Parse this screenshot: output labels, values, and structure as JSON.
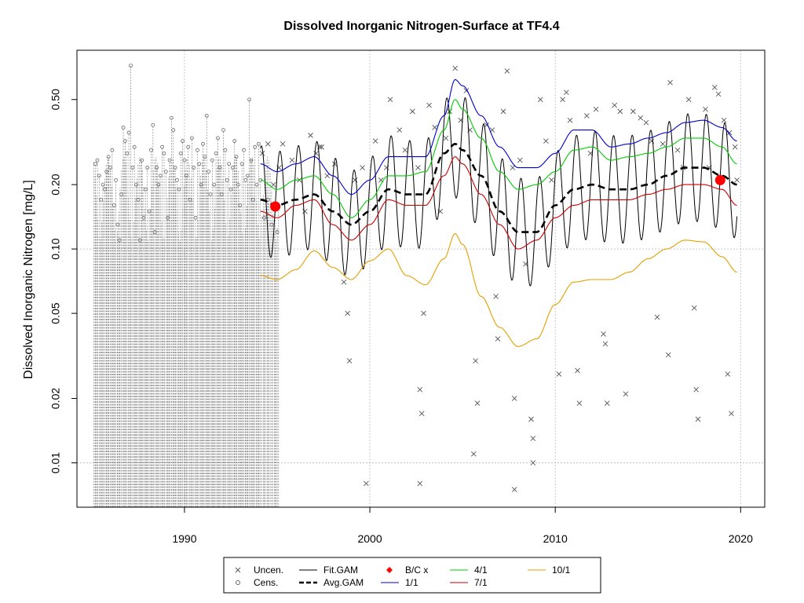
{
  "chart_data": {
    "type": "line",
    "title": "Dissolved Inorganic Nitrogen-Surface at TF4.4",
    "ylabel": "Dissolved Inorganic Nitrogen [mg/L]",
    "xlabel": "",
    "xlim": [
      1984.2,
      2021.3
    ],
    "ylim": [
      0.0062,
      0.85
    ],
    "y_scale": "log",
    "grid": true,
    "x_ticks": [
      1990,
      2000,
      2010,
      2020
    ],
    "y_ticks": [
      0.01,
      0.02,
      0.05,
      0.1,
      0.2,
      0.5
    ],
    "y_tick_labels": [
      "0.01",
      "0.02",
      "0.05",
      "0.10",
      "0.20",
      "0.50"
    ],
    "censored_range": [
      1985.1,
      1995.1
    ],
    "colors": {
      "fit": "#000000",
      "avg": "#000000",
      "p11": "#0000cc",
      "p41": "#00cc00",
      "p71": "#cc0000",
      "p101": "#e69f00",
      "bc": "#ff0000",
      "points": "#555555",
      "grid": "#bbbbbb"
    },
    "series": [
      {
        "name": "1/1",
        "key": "p11",
        "x": [
          1994.1,
          1995,
          1996,
          1997,
          1998,
          1999,
          2000,
          2001,
          2002,
          2003,
          2004,
          2004.6,
          2005,
          2006,
          2007,
          2008,
          2009,
          2010,
          2011,
          2012,
          2013,
          2014,
          2015,
          2016,
          2017,
          2018,
          2019,
          2019.8
        ],
        "values": [
          0.25,
          0.23,
          0.25,
          0.27,
          0.22,
          0.18,
          0.21,
          0.27,
          0.27,
          0.27,
          0.42,
          0.62,
          0.58,
          0.42,
          0.3,
          0.24,
          0.24,
          0.28,
          0.36,
          0.36,
          0.3,
          0.31,
          0.33,
          0.35,
          0.39,
          0.4,
          0.37,
          0.32
        ]
      },
      {
        "name": "4/1",
        "key": "p41",
        "x": [
          1994.1,
          1995,
          1996,
          1997,
          1998,
          1999,
          2000,
          2001,
          2002,
          2003,
          2004,
          2004.6,
          2005,
          2006,
          2007,
          2008,
          2009,
          2010,
          2011,
          2012,
          2013,
          2014,
          2015,
          2016,
          2017,
          2018,
          2019,
          2019.8
        ],
        "values": [
          0.21,
          0.19,
          0.21,
          0.22,
          0.18,
          0.14,
          0.17,
          0.22,
          0.22,
          0.23,
          0.36,
          0.5,
          0.45,
          0.33,
          0.23,
          0.19,
          0.2,
          0.23,
          0.29,
          0.3,
          0.26,
          0.27,
          0.28,
          0.3,
          0.33,
          0.33,
          0.3,
          0.25
        ]
      },
      {
        "name": "7/1",
        "key": "p71",
        "x": [
          1994.1,
          1995,
          1996,
          1997,
          1998,
          1999,
          2000,
          2001,
          2002,
          2003,
          2004,
          2004.6,
          2005,
          2006,
          2007,
          2008,
          2009,
          2010,
          2011,
          2012,
          2013,
          2014,
          2015,
          2016,
          2017,
          2018,
          2019,
          2019.8
        ],
        "values": [
          0.15,
          0.14,
          0.16,
          0.17,
          0.13,
          0.11,
          0.13,
          0.17,
          0.16,
          0.16,
          0.22,
          0.27,
          0.25,
          0.18,
          0.13,
          0.1,
          0.11,
          0.14,
          0.16,
          0.17,
          0.17,
          0.17,
          0.18,
          0.19,
          0.2,
          0.2,
          0.19,
          0.16
        ]
      },
      {
        "name": "10/1",
        "key": "p101",
        "x": [
          1994.1,
          1995,
          1996,
          1997,
          1998,
          1999,
          2000,
          2001,
          2002,
          2003,
          2004,
          2004.6,
          2005,
          2006,
          2007,
          2008,
          2009,
          2010,
          2011,
          2012,
          2013,
          2014,
          2015,
          2016,
          2017,
          2018,
          2019,
          2019.8
        ],
        "values": [
          0.075,
          0.072,
          0.08,
          0.098,
          0.082,
          0.072,
          0.088,
          0.1,
          0.075,
          0.068,
          0.09,
          0.118,
          0.105,
          0.06,
          0.043,
          0.035,
          0.038,
          0.055,
          0.07,
          0.072,
          0.072,
          0.078,
          0.09,
          0.1,
          0.11,
          0.108,
          0.092,
          0.078
        ]
      },
      {
        "name": "Avg.GAM",
        "key": "avg",
        "x": [
          1994.1,
          1995,
          1996,
          1997,
          1998,
          1999,
          2000,
          2001,
          2002,
          2003,
          2004,
          2004.6,
          2005,
          2006,
          2007,
          2008,
          2009,
          2010,
          2011,
          2012,
          2013,
          2014,
          2015,
          2016,
          2017,
          2018,
          2019,
          2019.8
        ],
        "values": [
          0.17,
          0.16,
          0.17,
          0.18,
          0.15,
          0.13,
          0.15,
          0.19,
          0.18,
          0.18,
          0.28,
          0.31,
          0.29,
          0.22,
          0.15,
          0.12,
          0.12,
          0.16,
          0.19,
          0.2,
          0.19,
          0.19,
          0.2,
          0.22,
          0.24,
          0.24,
          0.22,
          0.2
        ]
      }
    ],
    "fit_gam": {
      "name": "Fit.GAM",
      "x_start": 1994.1,
      "x_end": 2019.8,
      "period": 1.0,
      "peak_phase": 0.15,
      "amplitude": 0.58
    },
    "bc_points": [
      {
        "x": 1994.9,
        "y": 0.158
      },
      {
        "x": 2018.9,
        "y": 0.21
      }
    ],
    "uncensored_points": [
      [
        1994.2,
        0.28
      ],
      [
        1994.5,
        0.31
      ],
      [
        1994.8,
        0.2
      ],
      [
        1995.1,
        0.24
      ],
      [
        1995.3,
        0.31
      ],
      [
        1995.8,
        0.26
      ],
      [
        1996.2,
        0.21
      ],
      [
        1996.5,
        0.15
      ],
      [
        1996.8,
        0.34
      ],
      [
        1997.1,
        0.28
      ],
      [
        1997.4,
        0.3
      ],
      [
        1997.7,
        0.22
      ],
      [
        1997.3,
        0.3
      ],
      [
        1998.1,
        0.25
      ],
      [
        1998.6,
        0.07
      ],
      [
        1998.8,
        0.05
      ],
      [
        1998.9,
        0.03
      ],
      [
        1999.2,
        0.21
      ],
      [
        1999.6,
        0.24
      ],
      [
        1999.8,
        0.008
      ],
      [
        2000.3,
        0.32
      ],
      [
        2000.6,
        0.21
      ],
      [
        2000.9,
        0.24
      ],
      [
        2001.1,
        0.5
      ],
      [
        2001.6,
        0.36
      ],
      [
        2001.9,
        0.29
      ],
      [
        2002.3,
        0.44
      ],
      [
        2002.6,
        0.24
      ],
      [
        2002.7,
        0.022
      ],
      [
        2002.8,
        0.017
      ],
      [
        2002.9,
        0.05
      ],
      [
        2002.7,
        0.008
      ],
      [
        2003.2,
        0.47
      ],
      [
        2003.5,
        0.37
      ],
      [
        2003.8,
        0.15
      ],
      [
        2004.1,
        0.33
      ],
      [
        2004.3,
        0.44
      ],
      [
        2004.6,
        0.7
      ],
      [
        2004.9,
        0.4
      ],
      [
        2005.2,
        0.55
      ],
      [
        2005.4,
        0.36
      ],
      [
        2005.7,
        0.03
      ],
      [
        2005.8,
        0.019
      ],
      [
        2005.6,
        0.011
      ],
      [
        2006.3,
        0.38
      ],
      [
        2006.6,
        0.36
      ],
      [
        2006.8,
        0.06
      ],
      [
        2006.9,
        0.038
      ],
      [
        2007.2,
        0.44
      ],
      [
        2007.4,
        0.68
      ],
      [
        2007.7,
        0.24
      ],
      [
        2007.8,
        0.02
      ],
      [
        2007.8,
        0.0075
      ],
      [
        2008.1,
        0.26
      ],
      [
        2008.4,
        0.085
      ],
      [
        2008.7,
        0.016
      ],
      [
        2008.8,
        0.013
      ],
      [
        2008.8,
        0.01
      ],
      [
        2009.2,
        0.5
      ],
      [
        2009.5,
        0.32
      ],
      [
        2009.8,
        0.21
      ],
      [
        2010.2,
        0.026
      ],
      [
        2010.4,
        0.5
      ],
      [
        2010.6,
        0.54
      ],
      [
        2010.8,
        0.4
      ],
      [
        2011.2,
        0.027
      ],
      [
        2011.3,
        0.019
      ],
      [
        2011.7,
        0.42
      ],
      [
        2011.9,
        0.28
      ],
      [
        2012.2,
        0.45
      ],
      [
        2012.6,
        0.04
      ],
      [
        2012.7,
        0.036
      ],
      [
        2012.8,
        0.019
      ],
      [
        2013.2,
        0.47
      ],
      [
        2013.5,
        0.44
      ],
      [
        2013.8,
        0.021
      ],
      [
        2014.2,
        0.44
      ],
      [
        2014.6,
        0.41
      ],
      [
        2014.9,
        0.39
      ],
      [
        2015.2,
        0.32
      ],
      [
        2015.5,
        0.048
      ],
      [
        2015.8,
        0.31
      ],
      [
        2016.1,
        0.032
      ],
      [
        2016.2,
        0.6
      ],
      [
        2016.6,
        0.29
      ],
      [
        2016.9,
        0.24
      ],
      [
        2017.2,
        0.5
      ],
      [
        2017.5,
        0.053
      ],
      [
        2017.6,
        0.022
      ],
      [
        2017.7,
        0.016
      ],
      [
        2018.1,
        0.45
      ],
      [
        2018.3,
        0.24
      ],
      [
        2018.6,
        0.57
      ],
      [
        2018.8,
        0.53
      ],
      [
        2019.1,
        0.4
      ],
      [
        2019.3,
        0.026
      ],
      [
        2019.5,
        0.017
      ],
      [
        2019.7,
        0.3
      ],
      [
        2019.8,
        0.21
      ],
      [
        2019.4,
        0.35
      ]
    ],
    "censored_points": [
      [
        1985.2,
        0.25
      ],
      [
        1985.3,
        0.26
      ],
      [
        1985.4,
        0.22
      ],
      [
        1985.5,
        0.17
      ],
      [
        1985.6,
        0.2
      ],
      [
        1985.7,
        0.19
      ],
      [
        1985.8,
        0.23
      ],
      [
        1985.9,
        0.27
      ],
      [
        1986.0,
        0.24
      ],
      [
        1986.1,
        0.29
      ],
      [
        1986.2,
        0.16
      ],
      [
        1986.3,
        0.21
      ],
      [
        1986.4,
        0.13
      ],
      [
        1986.5,
        0.11
      ],
      [
        1986.6,
        0.18
      ],
      [
        1986.7,
        0.37
      ],
      [
        1986.8,
        0.32
      ],
      [
        1986.9,
        0.28
      ],
      [
        1987.0,
        0.35
      ],
      [
        1987.1,
        0.72
      ],
      [
        1987.2,
        0.24
      ],
      [
        1987.3,
        0.3
      ],
      [
        1987.4,
        0.2
      ],
      [
        1987.5,
        0.17
      ],
      [
        1987.6,
        0.11
      ],
      [
        1987.7,
        0.26
      ],
      [
        1987.8,
        0.14
      ],
      [
        1987.9,
        0.19
      ],
      [
        1988.0,
        0.24
      ],
      [
        1988.1,
        0.15
      ],
      [
        1988.2,
        0.29
      ],
      [
        1988.3,
        0.38
      ],
      [
        1988.4,
        0.12
      ],
      [
        1988.5,
        0.24
      ],
      [
        1988.6,
        0.2
      ],
      [
        1988.7,
        0.22
      ],
      [
        1988.8,
        0.3
      ],
      [
        1988.9,
        0.28
      ],
      [
        1989.0,
        0.23
      ],
      [
        1989.1,
        0.14
      ],
      [
        1989.2,
        0.26
      ],
      [
        1989.3,
        0.41
      ],
      [
        1989.4,
        0.36
      ],
      [
        1989.5,
        0.24
      ],
      [
        1989.6,
        0.21
      ],
      [
        1989.7,
        0.19
      ],
      [
        1989.8,
        0.28
      ],
      [
        1989.9,
        0.32
      ],
      [
        1990.0,
        0.26
      ],
      [
        1990.1,
        0.22
      ],
      [
        1990.2,
        0.3
      ],
      [
        1990.3,
        0.17
      ],
      [
        1990.4,
        0.33
      ],
      [
        1990.5,
        0.24
      ],
      [
        1990.6,
        0.14
      ],
      [
        1990.7,
        0.29
      ],
      [
        1990.8,
        0.25
      ],
      [
        1990.9,
        0.2
      ],
      [
        1991.0,
        0.31
      ],
      [
        1991.1,
        0.27
      ],
      [
        1991.2,
        0.42
      ],
      [
        1991.3,
        0.23
      ],
      [
        1991.4,
        0.18
      ],
      [
        1991.5,
        0.26
      ],
      [
        1991.6,
        0.2
      ],
      [
        1991.7,
        0.28
      ],
      [
        1991.8,
        0.33
      ],
      [
        1991.9,
        0.24
      ],
      [
        1992.0,
        0.18
      ],
      [
        1992.1,
        0.36
      ],
      [
        1992.2,
        0.29
      ],
      [
        1992.3,
        0.21
      ],
      [
        1992.4,
        0.25
      ],
      [
        1992.5,
        0.19
      ],
      [
        1992.6,
        0.24
      ],
      [
        1992.7,
        0.32
      ],
      [
        1992.8,
        0.27
      ],
      [
        1992.9,
        0.2
      ],
      [
        1993.0,
        0.16
      ],
      [
        1993.1,
        0.25
      ],
      [
        1993.2,
        0.29
      ],
      [
        1993.3,
        0.21
      ],
      [
        1993.4,
        0.22
      ],
      [
        1993.5,
        0.5
      ],
      [
        1993.6,
        0.26
      ],
      [
        1993.7,
        0.17
      ],
      [
        1993.8,
        0.3
      ],
      [
        1993.9,
        0.2
      ],
      [
        1994.0,
        0.31
      ],
      [
        1994.1,
        0.21
      ],
      [
        1994.3,
        0.14
      ],
      [
        1994.5,
        0.17
      ],
      [
        1994.7,
        0.13
      ],
      [
        1994.9,
        0.16
      ],
      [
        1995.0,
        0.12
      ]
    ],
    "legend": [
      {
        "label": "Uncen.",
        "sym": "cross"
      },
      {
        "label": "Cens.",
        "sym": "circle"
      },
      {
        "label": "Fit.GAM",
        "sym": "solid"
      },
      {
        "label": "Avg.GAM",
        "sym": "dash"
      },
      {
        "label": "B/C x",
        "sym": "diamond"
      },
      {
        "label": "1/1",
        "sym": "blue"
      },
      {
        "label": "4/1",
        "sym": "green"
      },
      {
        "label": "7/1",
        "sym": "red"
      },
      {
        "label": "10/1",
        "sym": "orange"
      }
    ]
  }
}
